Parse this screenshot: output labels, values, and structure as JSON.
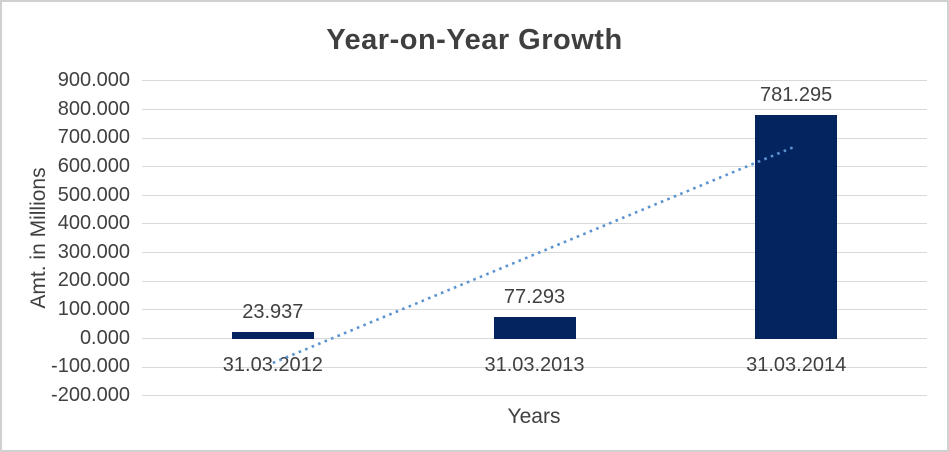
{
  "chart_data": {
    "type": "bar",
    "title": "Year-on-Year Growth",
    "xlabel": "Years",
    "ylabel": "Amt. in Millions",
    "categories": [
      "31.03.2012",
      "31.03.2013",
      "31.03.2014"
    ],
    "values": [
      23.937,
      77.293,
      781.295
    ],
    "data_labels": [
      "23.937",
      "77.293",
      "781.295"
    ],
    "series_name": "",
    "ylim": [
      -200,
      900
    ],
    "y_tick_step": 100,
    "y_tick_labels": [
      "900.000",
      "800.000",
      "700.000",
      "600.000",
      "500.000",
      "400.000",
      "300.000",
      "200.000",
      "100.000",
      "0.000",
      "-100.000",
      "-200.000"
    ],
    "y_tick_values": [
      900,
      800,
      700,
      600,
      500,
      400,
      300,
      200,
      100,
      0,
      -100,
      -200
    ],
    "grid": true,
    "legend": "none",
    "bar_color": "#03245e",
    "grid_color": "#d9d9d9",
    "text_color": "#404040",
    "frame_border_color": "#d0d0d0",
    "trendline": {
      "type": "linear",
      "style": "dotted",
      "color": "#5b93d1",
      "start_category": "31.03.2012",
      "end_category": "31.03.2014",
      "start_value": -84.5,
      "end_value": 672.9
    }
  }
}
